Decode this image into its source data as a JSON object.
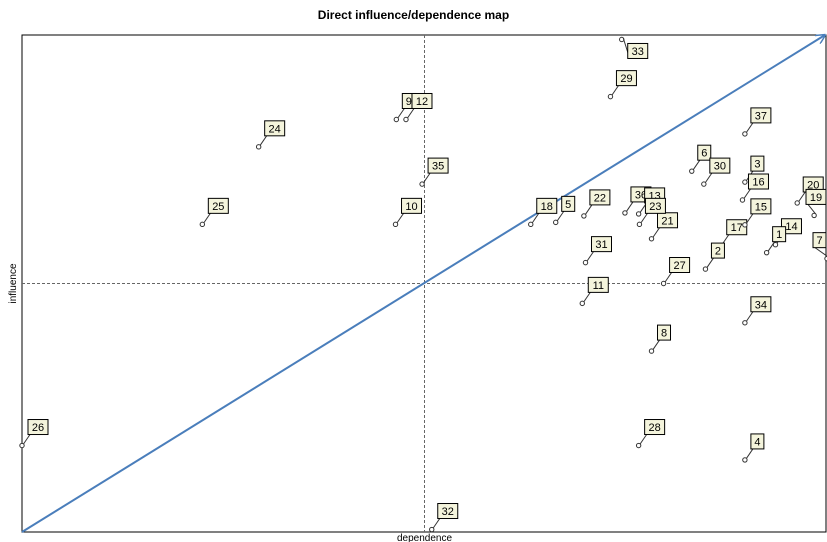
{
  "chart_data": {
    "type": "scatter",
    "title": "Direct influence/dependence map",
    "xlabel": "dependence",
    "ylabel": "influence",
    "xlim": [
      0,
      100
    ],
    "ylim": [
      0,
      100
    ],
    "grid": false,
    "colors": {
      "diagonal": "#4a7ebb",
      "point": "#333333",
      "label_fill": "#f4f4dc"
    },
    "points": [
      {
        "label": "33",
        "x": 74.5,
        "y": 99.1
      },
      {
        "label": "29",
        "x": 73.1,
        "y": 87.6
      },
      {
        "label": "9",
        "x": 46.5,
        "y": 83.0
      },
      {
        "label": "12",
        "x": 47.7,
        "y": 83.0
      },
      {
        "label": "24",
        "x": 29.4,
        "y": 77.5
      },
      {
        "label": "37",
        "x": 89.8,
        "y": 80.1
      },
      {
        "label": "6",
        "x": 83.2,
        "y": 72.6
      },
      {
        "label": "3",
        "x": 89.8,
        "y": 70.4
      },
      {
        "label": "30",
        "x": 84.7,
        "y": 70.0
      },
      {
        "label": "35",
        "x": 49.7,
        "y": 70.0
      },
      {
        "label": "20",
        "x": 96.3,
        "y": 66.2
      },
      {
        "label": "16",
        "x": 89.5,
        "y": 66.8
      },
      {
        "label": "19",
        "x": 98.4,
        "y": 63.7
      },
      {
        "label": "25",
        "x": 22.4,
        "y": 61.9
      },
      {
        "label": "18",
        "x": 63.2,
        "y": 61.9
      },
      {
        "label": "5",
        "x": 66.3,
        "y": 62.3
      },
      {
        "label": "22",
        "x": 69.8,
        "y": 63.6
      },
      {
        "label": "36",
        "x": 74.9,
        "y": 64.2
      },
      {
        "label": "13",
        "x": 76.6,
        "y": 64.0
      },
      {
        "label": "21",
        "x": 78.2,
        "y": 59.0
      },
      {
        "label": "23",
        "x": 76.7,
        "y": 61.9
      },
      {
        "label": "10",
        "x": 46.4,
        "y": 61.9
      },
      {
        "label": "17",
        "x": 86.8,
        "y": 57.6
      },
      {
        "label": "15",
        "x": 89.8,
        "y": 61.8
      },
      {
        "label": "14",
        "x": 93.6,
        "y": 57.8
      },
      {
        "label": "1",
        "x": 92.5,
        "y": 56.2
      },
      {
        "label": "7",
        "x": 100,
        "y": 55.0
      },
      {
        "label": "27",
        "x": 79.7,
        "y": 50.0
      },
      {
        "label": "2",
        "x": 84.9,
        "y": 52.9
      },
      {
        "label": "31",
        "x": 70.0,
        "y": 54.2
      },
      {
        "label": "11",
        "x": 69.6,
        "y": 46.0
      },
      {
        "label": "34",
        "x": 89.8,
        "y": 42.1
      },
      {
        "label": "8",
        "x": 78.2,
        "y": 36.4
      },
      {
        "label": "26",
        "x": 0.0,
        "y": 17.4
      },
      {
        "label": "28",
        "x": 76.6,
        "y": 17.4
      },
      {
        "label": "4",
        "x": 89.8,
        "y": 14.5
      },
      {
        "label": "32",
        "x": 50.9,
        "y": 0.5
      }
    ]
  }
}
